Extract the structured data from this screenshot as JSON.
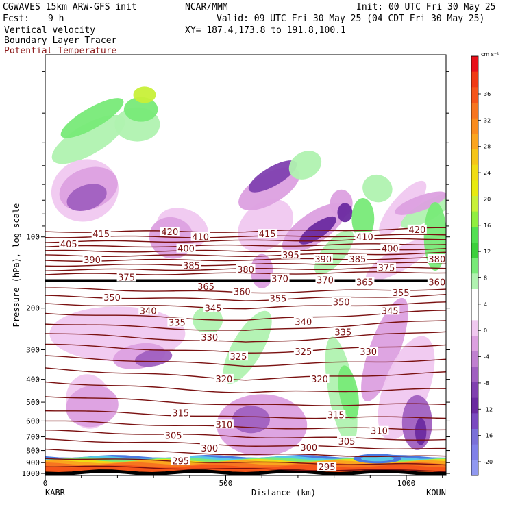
{
  "header": {
    "model": "CGWAVES 15km ARW-GFS init",
    "org": "NCAR/MMM",
    "init": "Init: 00 UTC Fri 30 May 25",
    "fcst_label": "Fcst:",
    "fcst_value": "9 h",
    "valid": "Valid: 09 UTC Fri 30 May 25 (04 CDT Fri 30 May 25)",
    "field1": "Vertical velocity",
    "xy": "XY= 187.4,173.8 to 191.8,100.1",
    "field2": "Boundary Layer Tracer",
    "field3": "Potential Temperature",
    "field3_color": "#8b1a1a"
  },
  "chart_data": {
    "type": "heatmap",
    "title": "",
    "xlabel": "Distance (km)",
    "ylabel": "Pressure (hPa), log scale",
    "x_ticks": [
      0,
      500,
      1000
    ],
    "xlim": [
      0,
      1110
    ],
    "y_scale": "log",
    "y_ticks": [
      100,
      200,
      300,
      400,
      500,
      600,
      700,
      800,
      900,
      1000
    ],
    "y_minor_ticks": [
      20,
      30,
      40,
      50,
      60,
      70,
      80,
      90
    ],
    "ylim": [
      1020,
      17
    ],
    "left_endpoint": "KABR",
    "right_endpoint": "KOUN",
    "colorbar": {
      "units": "cm s⁻¹",
      "labels": [
        36,
        32,
        28,
        24,
        20,
        16,
        12,
        8,
        4,
        0,
        -4,
        -8,
        -12,
        -16,
        -20
      ],
      "colors": [
        "#e8101a",
        "#f03a14",
        "#f5551a",
        "#f77520",
        "#fa8c1e",
        "#fba51e",
        "#f5c518",
        "#f0dc14",
        "#e8ea10",
        "#c8f038",
        "#90ee40",
        "#52e052",
        "#3cd03c",
        "#78ea78",
        "#b0f2b0",
        "#ffffff",
        "#ffffff",
        "#f0c8f0",
        "#dca0e0",
        "#c080d0",
        "#a060c0",
        "#8040b0",
        "#6a2aa0",
        "#7a4ac0",
        "#7a70d8",
        "#8080e8",
        "#9098f0"
      ]
    },
    "theta_labels": [
      {
        "value": 415,
        "x": 155,
        "p": 97
      },
      {
        "value": 420,
        "x": 345,
        "p": 95
      },
      {
        "value": 415,
        "x": 615,
        "p": 97
      },
      {
        "value": 410,
        "x": 430,
        "p": 100
      },
      {
        "value": 410,
        "x": 885,
        "p": 100
      },
      {
        "value": 420,
        "x": 1030,
        "p": 93
      },
      {
        "value": 405,
        "x": 65,
        "p": 107
      },
      {
        "value": 400,
        "x": 390,
        "p": 112
      },
      {
        "value": 400,
        "x": 955,
        "p": 112
      },
      {
        "value": 390,
        "x": 130,
        "p": 125
      },
      {
        "value": 395,
        "x": 680,
        "p": 119
      },
      {
        "value": 390,
        "x": 770,
        "p": 124
      },
      {
        "value": 385,
        "x": 865,
        "p": 124
      },
      {
        "value": 385,
        "x": 405,
        "p": 132
      },
      {
        "value": 380,
        "x": 1085,
        "p": 124
      },
      {
        "value": 380,
        "x": 555,
        "p": 137
      },
      {
        "value": 375,
        "x": 945,
        "p": 135
      },
      {
        "value": 375,
        "x": 225,
        "p": 148
      },
      {
        "value": 370,
        "x": 650,
        "p": 150
      },
      {
        "value": 370,
        "x": 775,
        "p": 152
      },
      {
        "value": 365,
        "x": 885,
        "p": 155
      },
      {
        "value": 360,
        "x": 1085,
        "p": 155
      },
      {
        "value": 365,
        "x": 445,
        "p": 162
      },
      {
        "value": 360,
        "x": 545,
        "p": 170
      },
      {
        "value": 355,
        "x": 985,
        "p": 172
      },
      {
        "value": 355,
        "x": 645,
        "p": 182
      },
      {
        "value": 350,
        "x": 185,
        "p": 180
      },
      {
        "value": 350,
        "x": 820,
        "p": 188
      },
      {
        "value": 345,
        "x": 465,
        "p": 200
      },
      {
        "value": 345,
        "x": 955,
        "p": 205
      },
      {
        "value": 340,
        "x": 285,
        "p": 205
      },
      {
        "value": 340,
        "x": 715,
        "p": 228
      },
      {
        "value": 335,
        "x": 365,
        "p": 230
      },
      {
        "value": 335,
        "x": 825,
        "p": 252
      },
      {
        "value": 330,
        "x": 455,
        "p": 265
      },
      {
        "value": 330,
        "x": 895,
        "p": 305
      },
      {
        "value": 325,
        "x": 535,
        "p": 320
      },
      {
        "value": 325,
        "x": 715,
        "p": 305
      },
      {
        "value": 320,
        "x": 495,
        "p": 398
      },
      {
        "value": 320,
        "x": 760,
        "p": 398
      },
      {
        "value": 315,
        "x": 375,
        "p": 555
      },
      {
        "value": 315,
        "x": 805,
        "p": 565
      },
      {
        "value": 310,
        "x": 495,
        "p": 620
      },
      {
        "value": 310,
        "x": 925,
        "p": 660
      },
      {
        "value": 305,
        "x": 355,
        "p": 690
      },
      {
        "value": 305,
        "x": 835,
        "p": 730
      },
      {
        "value": 300,
        "x": 455,
        "p": 780
      },
      {
        "value": 300,
        "x": 730,
        "p": 775
      },
      {
        "value": 295,
        "x": 375,
        "p": 885
      },
      {
        "value": 295,
        "x": 780,
        "p": 935
      }
    ]
  }
}
